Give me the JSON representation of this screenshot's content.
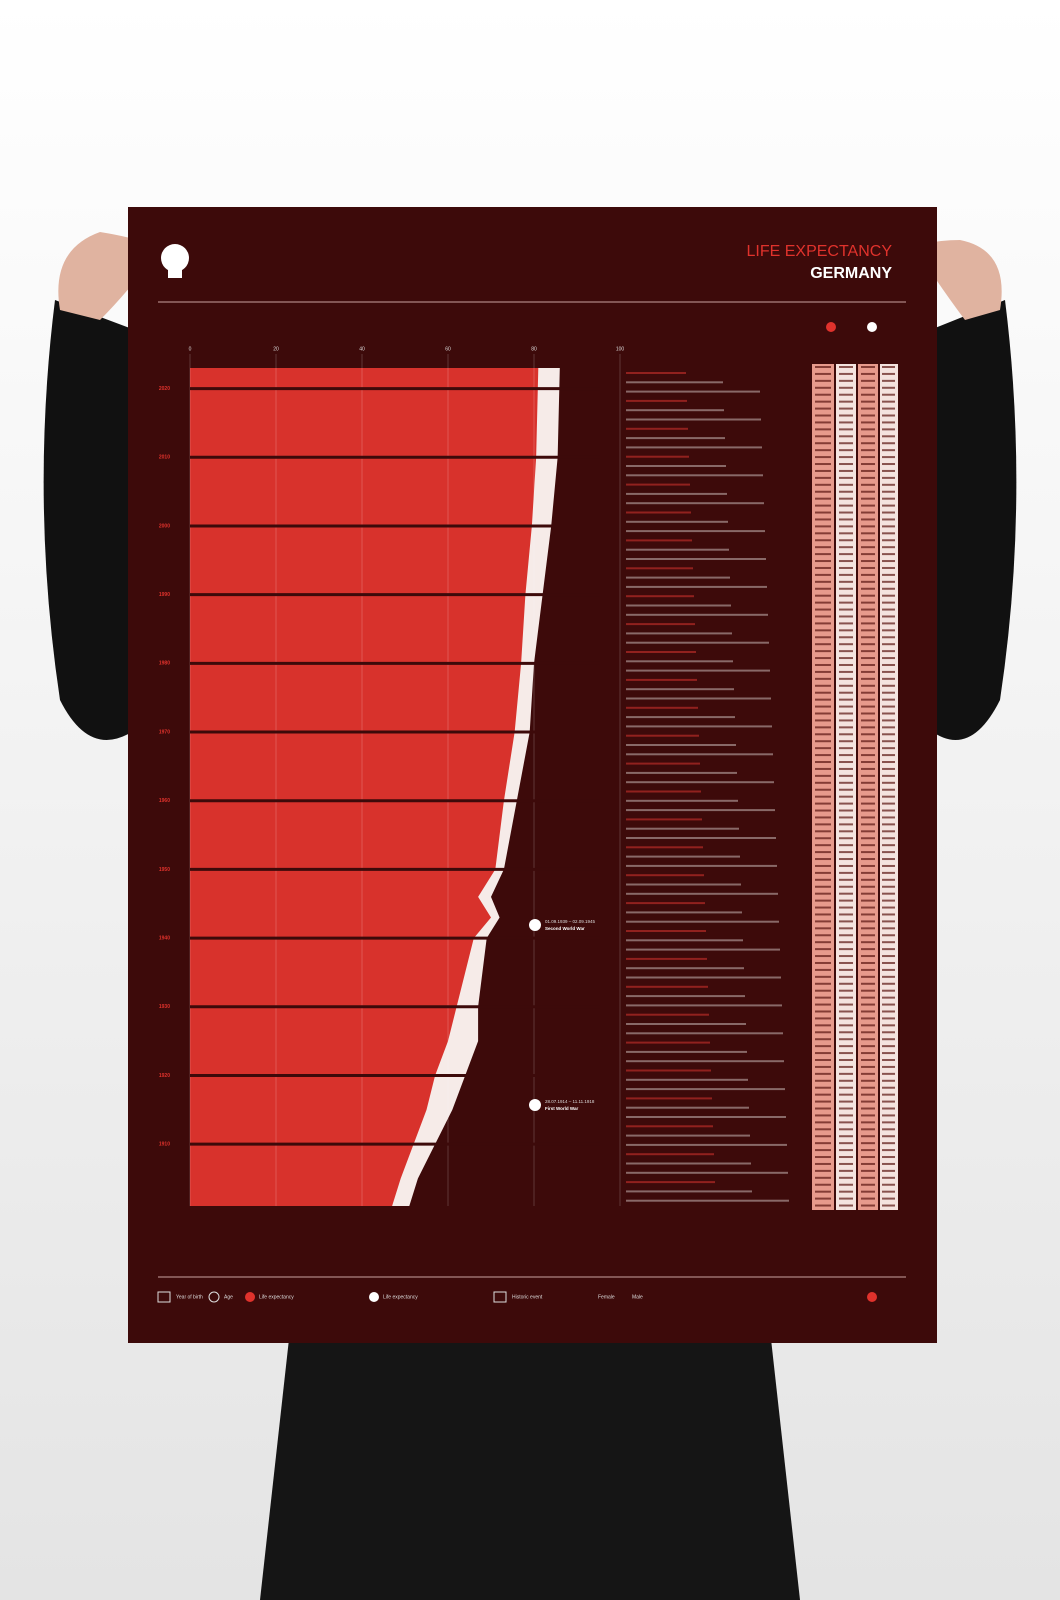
{
  "header": {
    "title": "LIFE EXPECTANCY",
    "subtitle": "GERMANY"
  },
  "chart_data": {
    "type": "area",
    "x": [
      2023,
      2010,
      2000,
      1990,
      1980,
      1970,
      1960,
      1950,
      1946,
      1943,
      1940,
      1935,
      1930,
      1925,
      1920,
      1915,
      1910,
      1905,
      1901
    ],
    "series": [
      {
        "name": "Life expectancy",
        "color": "#d8322c",
        "values": [
          81,
          80.5,
          79.5,
          78,
          77,
          75.5,
          73,
          71,
          67,
          70,
          66,
          64,
          62,
          60,
          57,
          55,
          52,
          49,
          47
        ]
      },
      {
        "name": "Life expectancy",
        "color": "#f6ebe8",
        "values": [
          86,
          85.5,
          84,
          82,
          80,
          79,
          76,
          73,
          70,
          72,
          69,
          68,
          67,
          67,
          64,
          61,
          57,
          53,
          51
        ]
      }
    ],
    "xlim": [
      0,
      100
    ],
    "xticks": [
      0,
      20,
      40,
      60,
      80,
      100
    ],
    "ylim": [
      1901,
      2023
    ],
    "yticks": [
      2020,
      2010,
      2000,
      1990,
      1980,
      1970,
      1960,
      1950,
      1940,
      1930,
      1920,
      1910
    ],
    "grid": true,
    "annotations": [
      {
        "dates": "01.09.1939 – 02.09.1945",
        "label": "Second World War"
      },
      {
        "dates": "28.07.1914 – 11.11.1918",
        "label": "First World War"
      }
    ]
  },
  "key": [
    "Year of birth",
    "Age",
    "Historic event",
    "Female",
    "Male"
  ]
}
